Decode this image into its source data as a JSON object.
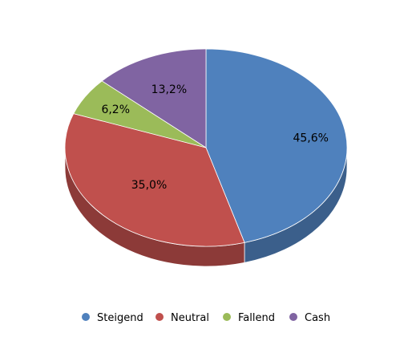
{
  "chart_data": {
    "type": "pie",
    "style": "3d",
    "title": "",
    "legend_position": "bottom",
    "slices": [
      {
        "name": "Steigend",
        "value": 45.6,
        "label": "45,6%",
        "color": "#4f81bd",
        "side_color": "#3b5f8b"
      },
      {
        "name": "Neutral",
        "value": 35.0,
        "label": "35,0%",
        "color": "#c0504d",
        "side_color": "#8c3a38"
      },
      {
        "name": "Fallend",
        "value": 6.2,
        "label": "6,2%",
        "color": "#9bbb59",
        "side_color": "#718a40"
      },
      {
        "name": "Cash",
        "value": 13.2,
        "label": "13,2%",
        "color": "#8064a2",
        "side_color": "#5d4977"
      }
    ]
  }
}
